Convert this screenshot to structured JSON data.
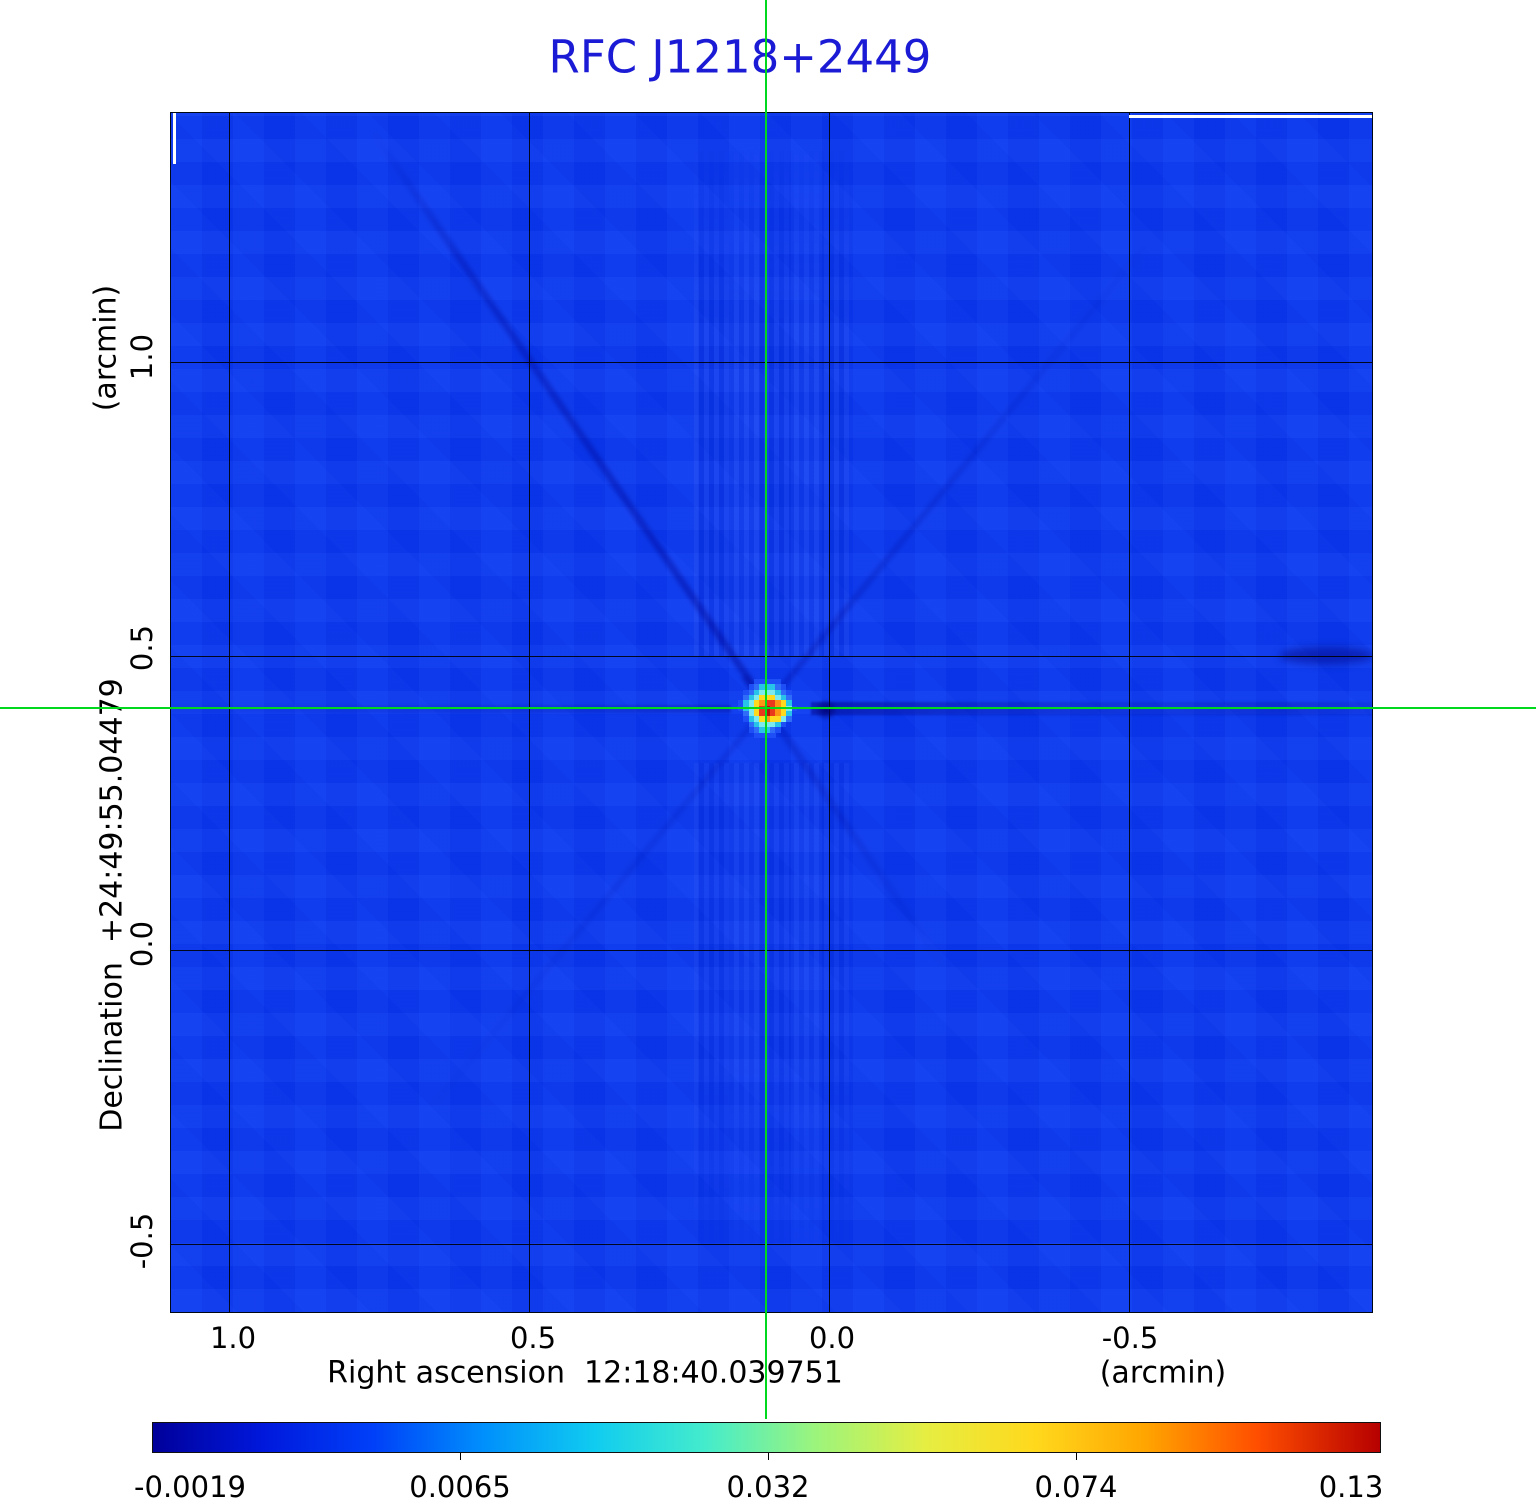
{
  "title": {
    "text": "RFC J1218+2449",
    "color": "#1b1bd6"
  },
  "axes": {
    "x": {
      "title": "Right ascension  12:18:40.039751",
      "unit": "(arcmin)",
      "ticks": [
        "1.0",
        "0.5",
        "0.0",
        "-0.5"
      ]
    },
    "y": {
      "title": "Declination  +24:49:55.04479",
      "unit": "(arcmin)",
      "ticks": [
        "1.0",
        "0.5",
        "0.0",
        "-0.5"
      ]
    }
  },
  "colorbar": {
    "labels": [
      "-0.0019",
      "0.0065",
      "0.032",
      "0.074",
      "0.13"
    ],
    "stops": [
      [
        0,
        "#00009a"
      ],
      [
        9,
        "#0018dc"
      ],
      [
        18,
        "#0040f8"
      ],
      [
        27,
        "#0090fc"
      ],
      [
        36,
        "#10ccf0"
      ],
      [
        45,
        "#44eccc"
      ],
      [
        54,
        "#9cf47c"
      ],
      [
        63,
        "#e6ee42"
      ],
      [
        72,
        "#ffd81c"
      ],
      [
        81,
        "#ffa400"
      ],
      [
        90,
        "#ff4e00"
      ],
      [
        100,
        "#b60000"
      ]
    ]
  },
  "crosshair_color": "#00d81e",
  "map_background_color": "#0939f2",
  "source": {
    "palette": {
      "b1": "#1e4ef6",
      "b2": "#2f6cf8",
      "c": "#27c3e8",
      "C": "#7ce9ee",
      "y": "#ffd91e",
      "o": "#fe9413",
      "r": "#e8391c",
      "R": "#b31407"
    },
    "pixels": [
      [
        ".",
        ".",
        ".",
        "b1",
        "b1",
        "b1",
        "b1",
        "b1",
        ".",
        ".",
        "."
      ],
      [
        ".",
        ".",
        "b1",
        "b2",
        "c",
        "c",
        "c",
        "b2",
        "b1",
        ".",
        "."
      ],
      [
        ".",
        "b1",
        "b2",
        "c",
        "C",
        "C",
        "C",
        "c",
        "b2",
        "b1",
        "."
      ],
      [
        ".",
        "b2",
        "c",
        "C",
        "y",
        "y",
        "y",
        "C",
        "c",
        "b2",
        "."
      ],
      [
        "b1",
        "c",
        "C",
        "y",
        "o",
        "r",
        "r",
        "o",
        "y",
        "c",
        "."
      ],
      [
        "b1",
        "c",
        "C",
        "y",
        "r",
        "R",
        "r",
        "o",
        "y",
        "C",
        "b1"
      ],
      [
        ".",
        "b2",
        "C",
        "y",
        "r",
        "R",
        "r",
        "o",
        "y",
        "c",
        "."
      ],
      [
        ".",
        "b1",
        "c",
        "C",
        "y",
        "o",
        "y",
        "y",
        "C",
        "b2",
        "."
      ],
      [
        ".",
        ".",
        "b2",
        "c",
        "C",
        "C",
        "C",
        "c",
        "b1",
        ".",
        "."
      ],
      [
        ".",
        ".",
        "b1",
        "b2",
        "c",
        "c",
        "b2",
        "b1",
        ".",
        ".",
        "."
      ],
      [
        ".",
        ".",
        ".",
        "b1",
        "b1",
        "b1",
        "b1",
        ".",
        ".",
        ".",
        "."
      ]
    ]
  },
  "chart_data": {
    "type": "heatmap",
    "title": "RFC J1218+2449",
    "xlabel": "Right ascension 12:18:40.039751 (arcmin)",
    "ylabel": "Declination +24:49:55.04479 (arcmin)",
    "x_ticks_arcmin": [
      1.0,
      0.5,
      0.0,
      -0.5
    ],
    "y_ticks_arcmin": [
      1.0,
      0.5,
      0.0,
      -0.5
    ],
    "x_range_arcmin": [
      1.1,
      -0.91
    ],
    "y_range_arcmin": [
      -0.62,
      1.42
    ],
    "colorbar_ticks": [
      -0.0019,
      0.0065,
      0.032,
      0.074,
      0.13
    ],
    "colorbar_min": -0.0019,
    "colorbar_max": 0.13,
    "colormap": "jet",
    "grid": true,
    "source_peak_offset_arcmin": {
      "ra": 0.1,
      "dec": 0.41
    },
    "source_peak_value": 0.13,
    "background_level": 0.0,
    "crosshair_position": "12:18:40.039751 +24:49:55.04479"
  }
}
